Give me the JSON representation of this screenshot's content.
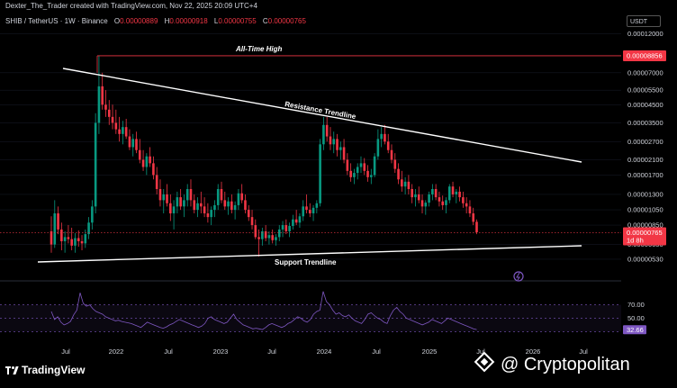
{
  "header": {
    "created": "Dexter_The_Trader created with TradingView.com, Nov 22, 2025 20:09 UTC+4",
    "symbol": "SHIB / TetherUS · 1W · Binance",
    "ohlc": [
      {
        "k": "O",
        "v": "0.00000889"
      },
      {
        "k": "H",
        "v": "0.00000918"
      },
      {
        "k": "L",
        "v": "0.00000755"
      },
      {
        "k": "C",
        "v": "0.00000765"
      }
    ],
    "currency": "USDT"
  },
  "brand": {
    "logo_text": "TradingView",
    "watermark": "@ Cryptopolitan"
  },
  "colors": {
    "up": "#089981",
    "down": "#f23645",
    "ath": "#f23645",
    "rsi": "#7e57c2",
    "trendline": "#ffffff"
  },
  "chart_data": {
    "type": "candlestick",
    "price_axis": {
      "scale": "log",
      "ticks": [
        "0.00012000",
        "0.00007000",
        "0.00005500",
        "0.00004500",
        "0.00003500",
        "0.00002700",
        "0.00002100",
        "0.00001700",
        "0.00001300",
        "0.00001050",
        "0.00000850",
        "0.00000650",
        "0.00000530"
      ]
    },
    "time_axis": {
      "ticks": [
        "Jul",
        "2022",
        "Jul",
        "2023",
        "Jul",
        "2024",
        "Jul",
        "2025",
        "Jul",
        "2026",
        "Jul"
      ]
    },
    "labels": {
      "ath_price": "0.00008856",
      "last_price": "0.00000765",
      "countdown": "1d 8h"
    },
    "annotations": {
      "ath": "All-Time High",
      "resistance": "Resistance Trendline",
      "support": "Support Trendline"
    },
    "rsi": {
      "ticks": [
        "70.00",
        "50.00"
      ],
      "last": "32.66",
      "values": [
        60,
        48,
        52,
        44,
        40,
        42,
        45,
        55,
        62,
        88,
        72,
        68,
        70,
        64,
        60,
        58,
        56,
        52,
        50,
        48,
        46,
        47,
        45,
        44,
        43,
        42,
        40,
        38,
        36,
        40,
        44,
        42,
        40,
        38,
        36,
        35,
        37,
        40,
        42,
        45,
        48,
        46,
        44,
        42,
        40,
        38,
        36,
        38,
        42,
        50,
        52,
        48,
        46,
        44,
        42,
        44,
        50,
        56,
        48,
        44,
        40,
        38,
        36,
        34,
        35,
        34,
        33,
        36,
        40,
        42,
        40,
        38,
        36,
        38,
        42,
        44,
        48,
        52,
        50,
        46,
        44,
        48,
        56,
        60,
        62,
        90,
        75,
        70,
        62,
        56,
        58,
        54,
        52,
        55,
        50,
        46,
        44,
        42,
        48,
        56,
        58,
        54,
        50,
        48,
        44,
        42,
        54,
        62,
        66,
        60,
        56,
        50,
        48,
        46,
        44,
        42,
        40,
        42,
        44,
        48,
        46,
        44,
        42,
        46,
        50,
        48,
        46,
        44,
        42,
        40,
        38,
        36,
        34,
        33
      ]
    },
    "candles": [
      {
        "o": 7.8e-06,
        "h": 9.6e-06,
        "l": 5.8e-06,
        "c": 6.5e-06
      },
      {
        "o": 6.5e-06,
        "h": 1.2e-05,
        "l": 6.2e-06,
        "c": 1e-05
      },
      {
        "o": 1e-05,
        "h": 1.1e-05,
        "l": 7.5e-06,
        "c": 8e-06
      },
      {
        "o": 8e-06,
        "h": 8.8e-06,
        "l": 6e-06,
        "c": 6.8e-06
      },
      {
        "o": 6.8e-06,
        "h": 7.8e-06,
        "l": 5.8e-06,
        "c": 7.2e-06
      },
      {
        "o": 7.2e-06,
        "h": 8.5e-06,
        "l": 6.6e-06,
        "c": 7e-06
      },
      {
        "o": 7e-06,
        "h": 8.2e-06,
        "l": 6e-06,
        "c": 6.4e-06
      },
      {
        "o": 6.4e-06,
        "h": 7.6e-06,
        "l": 5.8e-06,
        "c": 7.1e-06
      },
      {
        "o": 7.1e-06,
        "h": 7.9e-06,
        "l": 6.3e-06,
        "c": 6.8e-06
      },
      {
        "o": 6.8e-06,
        "h": 7.4e-06,
        "l": 6e-06,
        "c": 6.6e-06
      },
      {
        "o": 6.6e-06,
        "h": 8e-06,
        "l": 6.2e-06,
        "c": 7.5e-06
      },
      {
        "o": 7.5e-06,
        "h": 9.5e-06,
        "l": 7e-06,
        "c": 8.8e-06
      },
      {
        "o": 8.8e-06,
        "h": 1.2e-05,
        "l": 8e-06,
        "c": 1.1e-05
      },
      {
        "o": 1.1e-05,
        "h": 4e-05,
        "l": 1e-05,
        "c": 3.5e-05
      },
      {
        "o": 3.5e-05,
        "h": 8.85e-05,
        "l": 3e-05,
        "c": 5.8e-05
      },
      {
        "o": 5.8e-05,
        "h": 7e-05,
        "l": 4.2e-05,
        "c": 4.5e-05
      },
      {
        "o": 4.5e-05,
        "h": 5.5e-05,
        "l": 3.8e-05,
        "c": 4.2e-05
      },
      {
        "o": 4.2e-05,
        "h": 4.8e-05,
        "l": 3.4e-05,
        "c": 3.8e-05
      },
      {
        "o": 3.8e-05,
        "h": 4.5e-05,
        "l": 3.2e-05,
        "c": 3.5e-05
      },
      {
        "o": 3.5e-05,
        "h": 4.2e-05,
        "l": 3e-05,
        "c": 3.2e-05
      },
      {
        "o": 3.2e-05,
        "h": 3.8e-05,
        "l": 2.7e-05,
        "c": 3e-05
      },
      {
        "o": 3e-05,
        "h": 3.6e-05,
        "l": 2.6e-05,
        "c": 3.3e-05
      },
      {
        "o": 3.3e-05,
        "h": 3.7e-05,
        "l": 2.8e-05,
        "c": 2.9e-05
      },
      {
        "o": 2.9e-05,
        "h": 3.2e-05,
        "l": 2.4e-05,
        "c": 2.5e-05
      },
      {
        "o": 2.5e-05,
        "h": 3e-05,
        "l": 2.2e-05,
        "c": 2.8e-05
      },
      {
        "o": 2.8e-05,
        "h": 3.1e-05,
        "l": 2.3e-05,
        "c": 2.4e-05
      },
      {
        "o": 2.4e-05,
        "h": 2.8e-05,
        "l": 2e-05,
        "c": 2.1e-05
      },
      {
        "o": 2.1e-05,
        "h": 2.4e-05,
        "l": 1.8e-05,
        "c": 1.9e-05
      },
      {
        "o": 1.9e-05,
        "h": 2.3e-05,
        "l": 1.7e-05,
        "c": 2.2e-05
      },
      {
        "o": 2.2e-05,
        "h": 2.5e-05,
        "l": 1.9e-05,
        "c": 2e-05
      },
      {
        "o": 2e-05,
        "h": 2.2e-05,
        "l": 1.6e-05,
        "c": 1.7e-05
      },
      {
        "o": 1.7e-05,
        "h": 1.9e-05,
        "l": 1.3e-05,
        "c": 1.4e-05
      },
      {
        "o": 1.4e-05,
        "h": 1.6e-05,
        "l": 1.1e-05,
        "c": 1.2e-05
      },
      {
        "o": 1.2e-05,
        "h": 1.4e-05,
        "l": 1e-05,
        "c": 1.3e-05
      },
      {
        "o": 1.3e-05,
        "h": 1.5e-05,
        "l": 1.1e-05,
        "c": 1.15e-05
      },
      {
        "o": 1.15e-05,
        "h": 1.3e-05,
        "l": 9e-06,
        "c": 1e-05
      },
      {
        "o": 1e-05,
        "h": 1.2e-05,
        "l": 8e-06,
        "c": 1.1e-05
      },
      {
        "o": 1.1e-05,
        "h": 1.35e-05,
        "l": 1e-05,
        "c": 1.25e-05
      },
      {
        "o": 1.25e-05,
        "h": 1.4e-05,
        "l": 1.05e-05,
        "c": 1.1e-05
      },
      {
        "o": 1.1e-05,
        "h": 1.3e-05,
        "l": 9.5e-06,
        "c": 1.2e-05
      },
      {
        "o": 1.2e-05,
        "h": 1.5e-05,
        "l": 1.1e-05,
        "c": 1.4e-05
      },
      {
        "o": 1.4e-05,
        "h": 1.6e-05,
        "l": 1.1e-05,
        "c": 1.2e-05
      },
      {
        "o": 1.2e-05,
        "h": 1.3e-05,
        "l": 1e-05,
        "c": 1.05e-05
      },
      {
        "o": 1.05e-05,
        "h": 1.25e-05,
        "l": 9.5e-06,
        "c": 1.15e-05
      },
      {
        "o": 1.15e-05,
        "h": 1.35e-05,
        "l": 1e-05,
        "c": 1.1e-05
      },
      {
        "o": 1.1e-05,
        "h": 1.25e-05,
        "l": 9.5e-06,
        "c": 1e-05
      },
      {
        "o": 1e-05,
        "h": 1.15e-05,
        "l": 8.8e-06,
        "c": 9.5e-06
      },
      {
        "o": 9.5e-06,
        "h": 1.1e-05,
        "l": 8.5e-06,
        "c": 1.05e-05
      },
      {
        "o": 1.05e-05,
        "h": 1.2e-05,
        "l": 9.5e-06,
        "c": 1.12e-05
      },
      {
        "o": 1.12e-05,
        "h": 1.5e-05,
        "l": 1.05e-05,
        "c": 1.4e-05
      },
      {
        "o": 1.4e-05,
        "h": 1.55e-05,
        "l": 1.15e-05,
        "c": 1.2e-05
      },
      {
        "o": 1.2e-05,
        "h": 1.35e-05,
        "l": 1.05e-05,
        "c": 1.1e-05
      },
      {
        "o": 1.1e-05,
        "h": 1.25e-05,
        "l": 9.8e-06,
        "c": 1.18e-05
      },
      {
        "o": 1.18e-05,
        "h": 1.3e-05,
        "l": 1e-05,
        "c": 1.05e-05
      },
      {
        "o": 1.05e-05,
        "h": 1.18e-05,
        "l": 9.2e-06,
        "c": 1.12e-05
      },
      {
        "o": 1.12e-05,
        "h": 1.4e-05,
        "l": 1.05e-05,
        "c": 1.32e-05
      },
      {
        "o": 1.32e-05,
        "h": 1.5e-05,
        "l": 1.15e-05,
        "c": 1.2e-05
      },
      {
        "o": 1.2e-05,
        "h": 1.3e-05,
        "l": 1e-05,
        "c": 1.05e-05
      },
      {
        "o": 1.05e-05,
        "h": 1.12e-05,
        "l": 9e-06,
        "c": 9.5e-06
      },
      {
        "o": 9.5e-06,
        "h": 1.05e-05,
        "l": 8e-06,
        "c": 8.5e-06
      },
      {
        "o": 8.5e-06,
        "h": 9.2e-06,
        "l": 7e-06,
        "c": 7.2e-06
      },
      {
        "o": 7.2e-06,
        "h": 8e-06,
        "l": 5.5e-06,
        "c": 7e-06
      },
      {
        "o": 7e-06,
        "h": 8.2e-06,
        "l": 6.4e-06,
        "c": 7.8e-06
      },
      {
        "o": 7.8e-06,
        "h": 8.5e-06,
        "l": 6.8e-06,
        "c": 7.1e-06
      },
      {
        "o": 7.1e-06,
        "h": 7.8e-06,
        "l": 6.5e-06,
        "c": 7.4e-06
      },
      {
        "o": 7.4e-06,
        "h": 8e-06,
        "l": 6.6e-06,
        "c": 6.9e-06
      },
      {
        "o": 6.9e-06,
        "h": 7.5e-06,
        "l": 6.4e-06,
        "c": 7.2e-06
      },
      {
        "o": 7.2e-06,
        "h": 8.5e-06,
        "l": 6.8e-06,
        "c": 8e-06
      },
      {
        "o": 8e-06,
        "h": 9e-06,
        "l": 7.2e-06,
        "c": 8.5e-06
      },
      {
        "o": 8.5e-06,
        "h": 9.2e-06,
        "l": 7.5e-06,
        "c": 7.8e-06
      },
      {
        "o": 7.8e-06,
        "h": 8.8e-06,
        "l": 7.2e-06,
        "c": 8.4e-06
      },
      {
        "o": 8.4e-06,
        "h": 9.8e-06,
        "l": 8e-06,
        "c": 9.2e-06
      },
      {
        "o": 9.2e-06,
        "h": 1.05e-05,
        "l": 8.5e-06,
        "c": 8.8e-06
      },
      {
        "o": 8.8e-06,
        "h": 1e-05,
        "l": 8.2e-06,
        "c": 9.6e-06
      },
      {
        "o": 9.6e-06,
        "h": 1.2e-05,
        "l": 9e-06,
        "c": 1.1e-05
      },
      {
        "o": 1.1e-05,
        "h": 1.3e-05,
        "l": 1e-05,
        "c": 1.05e-05
      },
      {
        "o": 1.05e-05,
        "h": 1.15e-05,
        "l": 9.5e-06,
        "c": 1e-05
      },
      {
        "o": 1e-05,
        "h": 1.12e-05,
        "l": 9e-06,
        "c": 1.08e-05
      },
      {
        "o": 1.08e-05,
        "h": 1.2e-05,
        "l": 1e-05,
        "c": 1.15e-05
      },
      {
        "o": 1.15e-05,
        "h": 2.8e-05,
        "l": 1.1e-05,
        "c": 2.6e-05
      },
      {
        "o": 2.6e-05,
        "h": 3.8e-05,
        "l": 2.4e-05,
        "c": 3.4e-05
      },
      {
        "o": 3.4e-05,
        "h": 3.8e-05,
        "l": 2.7e-05,
        "c": 2.9e-05
      },
      {
        "o": 2.9e-05,
        "h": 3.3e-05,
        "l": 2.4e-05,
        "c": 2.6e-05
      },
      {
        "o": 2.6e-05,
        "h": 3.1e-05,
        "l": 2.3e-05,
        "c": 2.8e-05
      },
      {
        "o": 2.8e-05,
        "h": 3e-05,
        "l": 2.2e-05,
        "c": 2.4e-05
      },
      {
        "o": 2.4e-05,
        "h": 2.7e-05,
        "l": 2.1e-05,
        "c": 2.5e-05
      },
      {
        "o": 2.5e-05,
        "h": 2.8e-05,
        "l": 2e-05,
        "c": 2.1e-05
      },
      {
        "o": 2.1e-05,
        "h": 2.3e-05,
        "l": 1.7e-05,
        "c": 1.8e-05
      },
      {
        "o": 1.8e-05,
        "h": 2e-05,
        "l": 1.55e-05,
        "c": 1.65e-05
      },
      {
        "o": 1.65e-05,
        "h": 1.85e-05,
        "l": 1.5e-05,
        "c": 1.75e-05
      },
      {
        "o": 1.75e-05,
        "h": 2e-05,
        "l": 1.6e-05,
        "c": 1.9e-05
      },
      {
        "o": 1.9e-05,
        "h": 2.2e-05,
        "l": 1.75e-05,
        "c": 2e-05
      },
      {
        "o": 2e-05,
        "h": 2.15e-05,
        "l": 1.7e-05,
        "c": 1.8e-05
      },
      {
        "o": 1.8e-05,
        "h": 1.95e-05,
        "l": 1.55e-05,
        "c": 1.65e-05
      },
      {
        "o": 1.65e-05,
        "h": 1.85e-05,
        "l": 1.5e-05,
        "c": 1.7e-05
      },
      {
        "o": 1.7e-05,
        "h": 2.3e-05,
        "l": 1.65e-05,
        "c": 2.2e-05
      },
      {
        "o": 2.2e-05,
        "h": 3.2e-05,
        "l": 2.1e-05,
        "c": 2.8e-05
      },
      {
        "o": 2.8e-05,
        "h": 3.3e-05,
        "l": 2.5e-05,
        "c": 3e-05
      },
      {
        "o": 3e-05,
        "h": 3.4e-05,
        "l": 2.6e-05,
        "c": 2.7e-05
      },
      {
        "o": 2.7e-05,
        "h": 3e-05,
        "l": 2.3e-05,
        "c": 2.4e-05
      },
      {
        "o": 2.4e-05,
        "h": 2.6e-05,
        "l": 2e-05,
        "c": 2.1e-05
      },
      {
        "o": 2.1e-05,
        "h": 2.3e-05,
        "l": 1.75e-05,
        "c": 1.85e-05
      },
      {
        "o": 1.85e-05,
        "h": 2e-05,
        "l": 1.5e-05,
        "c": 1.6e-05
      },
      {
        "o": 1.6e-05,
        "h": 1.8e-05,
        "l": 1.35e-05,
        "c": 1.45e-05
      },
      {
        "o": 1.45e-05,
        "h": 1.65e-05,
        "l": 1.3e-05,
        "c": 1.55e-05
      },
      {
        "o": 1.55e-05,
        "h": 1.7e-05,
        "l": 1.3e-05,
        "c": 1.4e-05
      },
      {
        "o": 1.4e-05,
        "h": 1.5e-05,
        "l": 1.15e-05,
        "c": 1.25e-05
      },
      {
        "o": 1.25e-05,
        "h": 1.4e-05,
        "l": 1.1e-05,
        "c": 1.3e-05
      },
      {
        "o": 1.3e-05,
        "h": 1.45e-05,
        "l": 1.15e-05,
        "c": 1.2e-05
      },
      {
        "o": 1.2e-05,
        "h": 1.3e-05,
        "l": 1e-05,
        "c": 1.1e-05
      },
      {
        "o": 1.1e-05,
        "h": 1.2e-05,
        "l": 9.8e-06,
        "c": 1.16e-05
      },
      {
        "o": 1.16e-05,
        "h": 1.35e-05,
        "l": 1.1e-05,
        "c": 1.3e-05
      },
      {
        "o": 1.3e-05,
        "h": 1.5e-05,
        "l": 1.2e-05,
        "c": 1.4e-05
      },
      {
        "o": 1.4e-05,
        "h": 1.5e-05,
        "l": 1.2e-05,
        "c": 1.25e-05
      },
      {
        "o": 1.25e-05,
        "h": 1.35e-05,
        "l": 1.1e-05,
        "c": 1.18e-05
      },
      {
        "o": 1.18e-05,
        "h": 1.28e-05,
        "l": 1.05e-05,
        "c": 1.12e-05
      },
      {
        "o": 1.12e-05,
        "h": 1.25e-05,
        "l": 1e-05,
        "c": 1.2e-05
      },
      {
        "o": 1.2e-05,
        "h": 1.5e-05,
        "l": 1.15e-05,
        "c": 1.45e-05
      },
      {
        "o": 1.45e-05,
        "h": 1.55e-05,
        "l": 1.25e-05,
        "c": 1.3e-05
      },
      {
        "o": 1.3e-05,
        "h": 1.4e-05,
        "l": 1.15e-05,
        "c": 1.35e-05
      },
      {
        "o": 1.35e-05,
        "h": 1.45e-05,
        "l": 1.18e-05,
        "c": 1.25e-05
      },
      {
        "o": 1.25e-05,
        "h": 1.35e-05,
        "l": 1.08e-05,
        "c": 1.15e-05
      },
      {
        "o": 1.15e-05,
        "h": 1.25e-05,
        "l": 1e-05,
        "c": 1.1e-05
      },
      {
        "o": 1.1e-05,
        "h": 1.2e-05,
        "l": 9.5e-06,
        "c": 1e-05
      },
      {
        "o": 1e-05,
        "h": 1.08e-05,
        "l": 8.5e-06,
        "c": 8.9e-06
      },
      {
        "o": 8.9e-06,
        "h": 9.2e-06,
        "l": 7.5e-06,
        "c": 7.7e-06
      }
    ]
  }
}
